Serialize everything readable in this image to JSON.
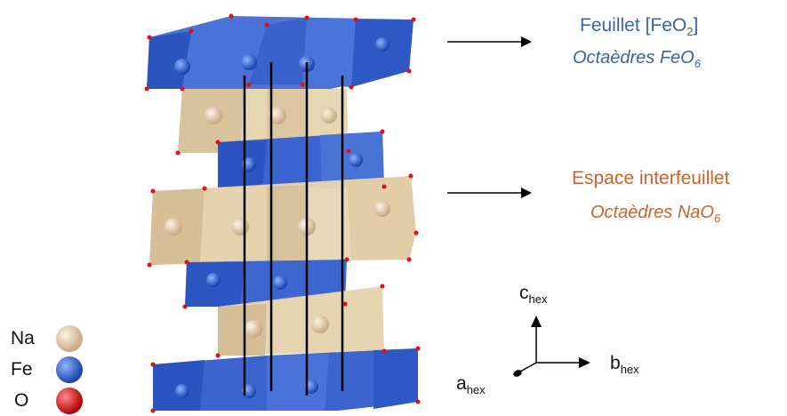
{
  "labels": {
    "sheet_title": "Feuillet [FeO",
    "sheet_title_sub": "2",
    "sheet_title_end": "]",
    "sheet_sub": "Octaèdres FeO",
    "sheet_sub_sub": "6",
    "inter_title": "Espace interfeuillet",
    "inter_sub": "Octaèdres NaO",
    "inter_sub_sub": "6"
  },
  "legend": [
    {
      "label": "Na",
      "color": "#e9cfa9"
    },
    {
      "label": "Fe",
      "color": "#2f66d6"
    },
    {
      "label": "O",
      "color": "#e01010"
    }
  ],
  "axes": {
    "c": "c",
    "c_sub": "hex",
    "b": "b",
    "b_sub": "hex",
    "a": "a",
    "a_sub": "hex"
  },
  "colors": {
    "fe_layer": "#3b66d1",
    "na_layer": "#e7d6b4",
    "title_blue": "#3a63a8",
    "title_orange": "#c9642a"
  }
}
